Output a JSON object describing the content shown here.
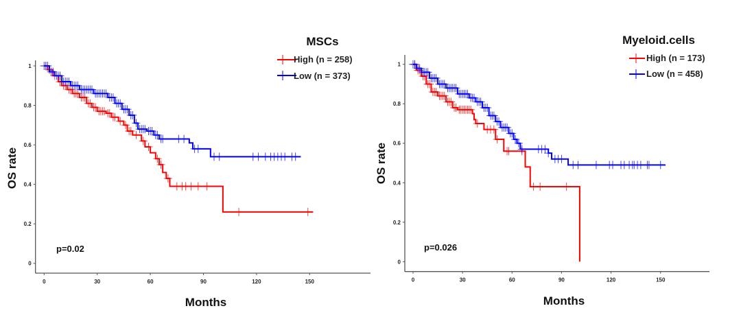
{
  "chart_data": [
    {
      "type": "line",
      "subtype": "kaplan-meier",
      "title": "MSCs",
      "xlabel": "Months",
      "ylabel": "OS rate",
      "xlim": [
        0,
        180
      ],
      "ylim": [
        0,
        1
      ],
      "xticks": [
        "0",
        "30",
        "60",
        "90",
        "120",
        "150"
      ],
      "yticks": [
        "0",
        "0.2",
        "0.4",
        "0.6",
        "0.8",
        "1"
      ],
      "annotation": "p=0.02",
      "legend_position": "top-right",
      "series": [
        {
          "name": "High (n = 258)",
          "color": "#ff0000",
          "steps": [
            [
              0,
              1
            ],
            [
              2,
              0.98
            ],
            [
              5,
              0.95
            ],
            [
              8,
              0.92
            ],
            [
              10,
              0.9
            ],
            [
              13,
              0.88
            ],
            [
              16,
              0.86
            ],
            [
              20,
              0.84
            ],
            [
              24,
              0.81
            ],
            [
              27,
              0.79
            ],
            [
              30,
              0.77
            ],
            [
              35,
              0.76
            ],
            [
              38,
              0.74
            ],
            [
              42,
              0.72
            ],
            [
              45,
              0.7
            ],
            [
              47,
              0.67
            ],
            [
              50,
              0.65
            ],
            [
              55,
              0.62
            ],
            [
              57,
              0.59
            ],
            [
              60,
              0.56
            ],
            [
              63,
              0.53
            ],
            [
              65,
              0.5
            ],
            [
              67,
              0.46
            ],
            [
              69,
              0.43
            ],
            [
              71,
              0.39
            ],
            [
              101,
              0.26
            ]
          ],
          "end": 152,
          "censored": [
            1,
            3,
            6,
            9,
            11,
            12,
            14,
            15,
            17,
            18,
            19,
            21,
            22,
            23,
            25,
            26,
            28,
            29,
            31,
            32,
            33,
            34,
            36,
            37,
            39,
            40,
            43,
            46,
            48,
            49,
            52,
            56,
            59,
            64,
            66,
            70,
            75,
            78,
            80,
            83,
            87,
            92,
            110,
            149
          ]
        },
        {
          "name": "Low (n = 373)",
          "color": "#0000ff",
          "steps": [
            [
              0,
              1
            ],
            [
              3,
              0.97
            ],
            [
              6,
              0.95
            ],
            [
              10,
              0.92
            ],
            [
              15,
              0.9
            ],
            [
              20,
              0.88
            ],
            [
              28,
              0.86
            ],
            [
              36,
              0.84
            ],
            [
              40,
              0.81
            ],
            [
              44,
              0.78
            ],
            [
              48,
              0.75
            ],
            [
              51,
              0.71
            ],
            [
              53,
              0.68
            ],
            [
              58,
              0.67
            ],
            [
              62,
              0.65
            ],
            [
              65,
              0.63
            ],
            [
              82,
              0.61
            ],
            [
              84,
              0.58
            ],
            [
              94,
              0.54
            ]
          ],
          "end": 145,
          "censored": [
            0,
            1,
            2,
            4,
            5,
            7,
            8,
            9,
            11,
            12,
            13,
            14,
            16,
            17,
            18,
            19,
            21,
            22,
            23,
            24,
            25,
            26,
            27,
            29,
            30,
            31,
            32,
            33,
            34,
            35,
            37,
            38,
            39,
            41,
            42,
            43,
            45,
            46,
            47,
            49,
            50,
            52,
            54,
            55,
            56,
            57,
            59,
            60,
            61,
            63,
            64,
            66,
            67,
            76,
            79,
            85,
            87,
            96,
            99,
            118,
            121,
            125,
            128,
            130,
            132,
            134,
            136,
            140,
            142
          ]
        }
      ]
    },
    {
      "type": "line",
      "subtype": "kaplan-meier",
      "title": "Myeloid.cells",
      "xlabel": "Months",
      "ylabel": "OS rate",
      "xlim": [
        0,
        180
      ],
      "ylim": [
        0,
        1
      ],
      "xticks": [
        "0",
        "30",
        "60",
        "90",
        "120",
        "150"
      ],
      "yticks": [
        "0",
        "0.2",
        "0.4",
        "0.6",
        "0.8",
        "1"
      ],
      "annotation": "p=0.026",
      "legend_position": "top-right",
      "series": [
        {
          "name": "High (n = 173)",
          "color": "#ff0000",
          "steps": [
            [
              0,
              1
            ],
            [
              2,
              0.97
            ],
            [
              5,
              0.94
            ],
            [
              8,
              0.9
            ],
            [
              11,
              0.86
            ],
            [
              15,
              0.84
            ],
            [
              20,
              0.81
            ],
            [
              24,
              0.78
            ],
            [
              27,
              0.77
            ],
            [
              36,
              0.75
            ],
            [
              37,
              0.72
            ],
            [
              38,
              0.7
            ],
            [
              43,
              0.67
            ],
            [
              50,
              0.62
            ],
            [
              55,
              0.56
            ],
            [
              68,
              0.48
            ],
            [
              71,
              0.38
            ],
            [
              101,
              0
            ]
          ],
          "end": 101,
          "censored": [
            1,
            3,
            4,
            6,
            7,
            9,
            10,
            12,
            13,
            14,
            16,
            17,
            18,
            19,
            21,
            22,
            23,
            25,
            26,
            28,
            29,
            30,
            31,
            32,
            33,
            34,
            35,
            39,
            45,
            47,
            49,
            51,
            57,
            58,
            66,
            73,
            77,
            93
          ]
        },
        {
          "name": "Low (n = 458)",
          "color": "#0000ff",
          "steps": [
            [
              0,
              1
            ],
            [
              2,
              0.98
            ],
            [
              5,
              0.96
            ],
            [
              10,
              0.93
            ],
            [
              15,
              0.9
            ],
            [
              20,
              0.88
            ],
            [
              27,
              0.85
            ],
            [
              34,
              0.83
            ],
            [
              38,
              0.81
            ],
            [
              42,
              0.78
            ],
            [
              46,
              0.74
            ],
            [
              50,
              0.71
            ],
            [
              53,
              0.68
            ],
            [
              58,
              0.65
            ],
            [
              61,
              0.62
            ],
            [
              63,
              0.6
            ],
            [
              65,
              0.57
            ],
            [
              82,
              0.55
            ],
            [
              84,
              0.52
            ],
            [
              94,
              0.49
            ]
          ],
          "end": 153,
          "censored": [
            0,
            1,
            3,
            4,
            6,
            7,
            8,
            9,
            11,
            12,
            13,
            14,
            16,
            17,
            18,
            19,
            21,
            22,
            23,
            24,
            25,
            26,
            28,
            29,
            30,
            31,
            32,
            33,
            35,
            36,
            37,
            39,
            40,
            41,
            43,
            44,
            45,
            47,
            48,
            49,
            51,
            52,
            54,
            55,
            56,
            57,
            59,
            60,
            62,
            64,
            66,
            76,
            78,
            80,
            82,
            86,
            88,
            90,
            97,
            100,
            111,
            119,
            121,
            126,
            128,
            131,
            133,
            134,
            136,
            138,
            142,
            143,
            150
          ]
        }
      ]
    }
  ]
}
